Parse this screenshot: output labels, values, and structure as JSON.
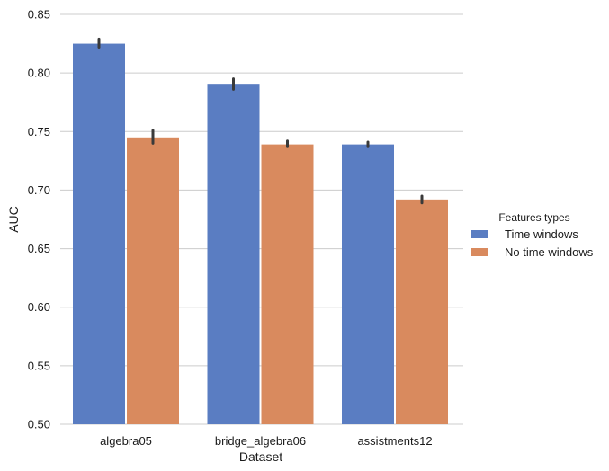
{
  "chart_data": {
    "type": "bar",
    "xlabel": "Dataset",
    "ylabel": "AUC",
    "ylim": [
      0.5,
      0.85
    ],
    "yticks": [
      0.5,
      0.55,
      0.6,
      0.65,
      0.7,
      0.75,
      0.8,
      0.85
    ],
    "ytick_labels": [
      "0.50",
      "0.55",
      "0.60",
      "0.65",
      "0.70",
      "0.75",
      "0.80",
      "0.85"
    ],
    "categories": [
      "algebra05",
      "bridge_algebra06",
      "assistments12"
    ],
    "series": [
      {
        "name": "Time windows",
        "color": "#5a7dc2",
        "values": [
          0.825,
          0.79,
          0.739
        ],
        "err_low": [
          0.822,
          0.786,
          0.737
        ],
        "err_high": [
          0.829,
          0.795,
          0.741
        ]
      },
      {
        "name": "No time windows",
        "color": "#d98a5e",
        "values": [
          0.745,
          0.739,
          0.692
        ],
        "err_low": [
          0.74,
          0.737,
          0.689
        ],
        "err_high": [
          0.751,
          0.742,
          0.695
        ]
      }
    ],
    "grid": true,
    "legend": {
      "title": "Features types",
      "placement": "right"
    }
  }
}
